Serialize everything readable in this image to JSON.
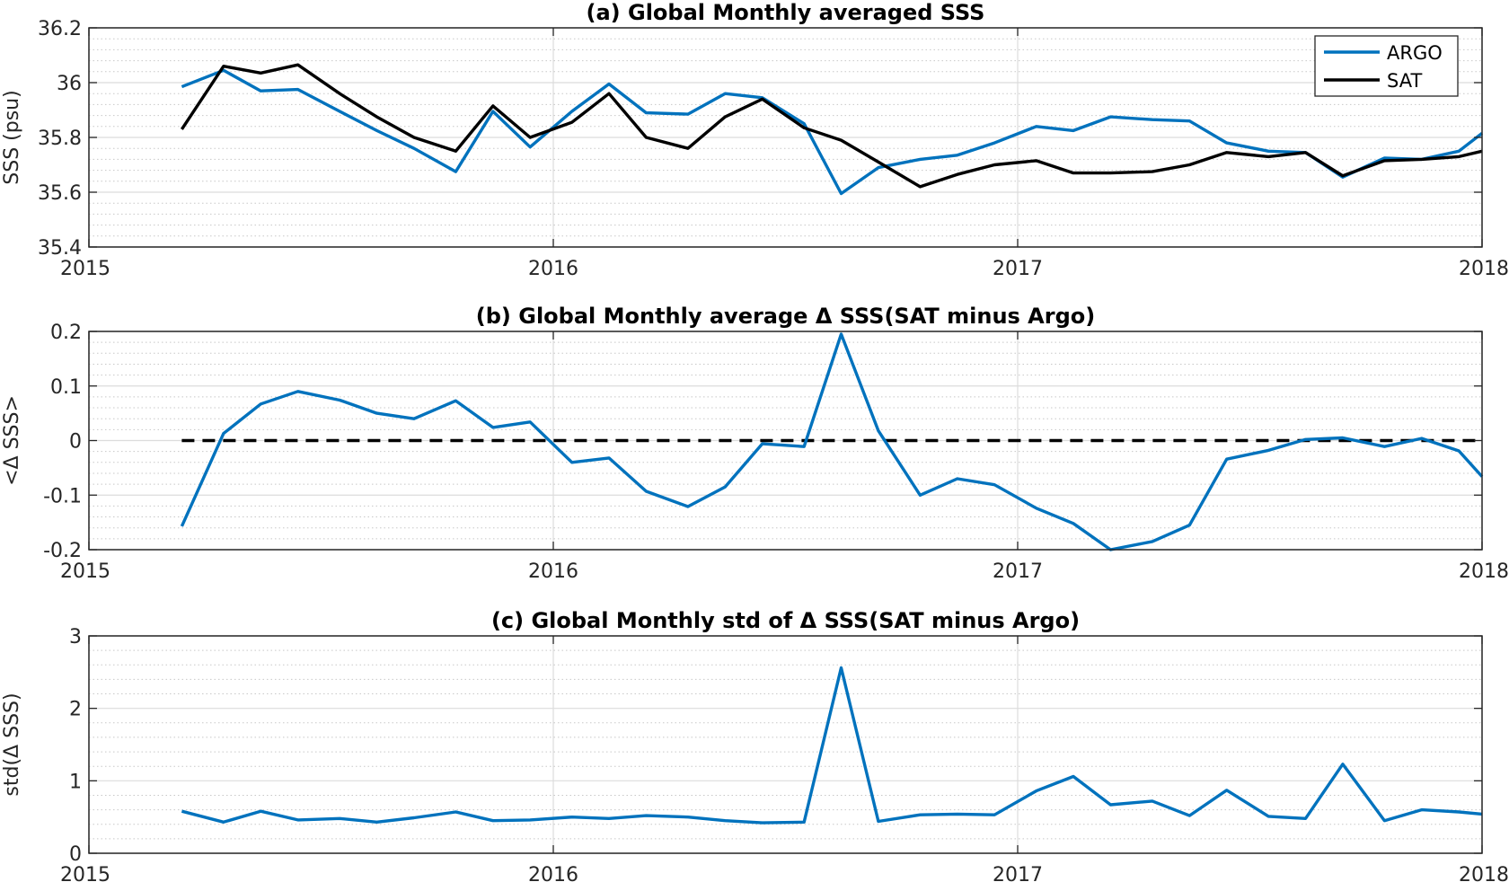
{
  "colors": {
    "argo": "#0072BD",
    "sat": "#000000",
    "zero_line": "#000000"
  },
  "chart_data": [
    {
      "type": "line",
      "title": "(a) Global Monthly averaged SSS",
      "xlabel": "",
      "ylabel": "SSS (psu)",
      "xlim": [
        2015,
        2018
      ],
      "ylim": [
        35.4,
        36.2
      ],
      "xticks": [
        2015,
        2016,
        2017,
        2018
      ],
      "xtick_labels": [
        "2015",
        "2016",
        "2017",
        "2018"
      ],
      "yticks": [
        35.4,
        35.6,
        35.8,
        36,
        36.2
      ],
      "ytick_labels": [
        "35.4",
        "35.6",
        "35.8",
        "36",
        "36.2"
      ],
      "y_minor_step": 0.04,
      "grid": true,
      "legend": "top-right",
      "x": [
        2015.2,
        2015.29,
        2015.37,
        2015.45,
        2015.54,
        2015.62,
        2015.7,
        2015.79,
        2015.87,
        2015.95,
        2016.04,
        2016.12,
        2016.2,
        2016.29,
        2016.37,
        2016.45,
        2016.54,
        2016.62,
        2016.7,
        2016.79,
        2016.87,
        2016.95,
        2017.04,
        2017.12,
        2017.2,
        2017.29,
        2017.37,
        2017.45,
        2017.54,
        2017.62,
        2017.7,
        2017.79,
        2017.87,
        2017.95,
        2018.0
      ],
      "series": [
        {
          "name": "ARGO",
          "values": [
            35.985,
            36.045,
            35.97,
            35.975,
            35.895,
            35.825,
            35.76,
            35.675,
            35.895,
            35.765,
            35.895,
            35.995,
            35.89,
            35.885,
            35.96,
            35.945,
            35.85,
            35.595,
            35.69,
            35.72,
            35.735,
            35.78,
            35.84,
            35.825,
            35.875,
            35.865,
            35.86,
            35.78,
            35.75,
            35.745,
            35.655,
            35.725,
            35.72,
            35.75,
            35.815
          ]
        },
        {
          "name": "SAT",
          "values": [
            35.83,
            36.06,
            36.035,
            36.065,
            35.96,
            35.875,
            35.8,
            35.75,
            35.915,
            35.8,
            35.855,
            35.96,
            35.8,
            35.76,
            35.875,
            35.94,
            35.835,
            35.79,
            35.71,
            35.62,
            35.665,
            35.7,
            35.715,
            35.67,
            35.67,
            35.675,
            35.7,
            35.745,
            35.73,
            35.745,
            35.66,
            35.715,
            35.72,
            35.73,
            35.75
          ]
        }
      ]
    },
    {
      "type": "line",
      "title": "(b) Global Monthly average Δ SSS(SAT minus Argo)",
      "xlabel": "",
      "ylabel": "<Δ SSS>",
      "xlim": [
        2015,
        2018
      ],
      "ylim": [
        -0.2,
        0.2
      ],
      "xticks": [
        2015,
        2016,
        2017,
        2018
      ],
      "xtick_labels": [
        "2015",
        "2016",
        "2017",
        "2018"
      ],
      "yticks": [
        -0.2,
        -0.1,
        0,
        0.1,
        0.2
      ],
      "ytick_labels": [
        "-0.2",
        "-0.1",
        "0",
        "0.1",
        "0.2"
      ],
      "y_minor_step": 0.02,
      "grid": true,
      "zero_line": 0,
      "x": [
        2015.2,
        2015.29,
        2015.37,
        2015.45,
        2015.54,
        2015.62,
        2015.7,
        2015.79,
        2015.87,
        2015.95,
        2016.04,
        2016.12,
        2016.2,
        2016.29,
        2016.37,
        2016.45,
        2016.54,
        2016.62,
        2016.7,
        2016.79,
        2016.87,
        2016.95,
        2017.04,
        2017.12,
        2017.2,
        2017.29,
        2017.37,
        2017.45,
        2017.54,
        2017.62,
        2017.7,
        2017.79,
        2017.87,
        2017.95,
        2018.0
      ],
      "series": [
        {
          "name": "",
          "values": [
            -0.157,
            0.013,
            0.067,
            0.09,
            0.074,
            0.05,
            0.04,
            0.073,
            0.024,
            0.034,
            -0.04,
            -0.032,
            -0.093,
            -0.121,
            -0.085,
            -0.006,
            -0.011,
            0.195,
            0.018,
            -0.1,
            -0.07,
            -0.081,
            -0.124,
            -0.152,
            -0.2,
            -0.185,
            -0.155,
            -0.034,
            -0.018,
            0.002,
            0.005,
            -0.011,
            0.004,
            -0.019,
            -0.066
          ]
        }
      ]
    },
    {
      "type": "line",
      "title": "(c) Global Monthly std of Δ SSS(SAT minus Argo)",
      "xlabel": "",
      "ylabel": "std(Δ SSS)",
      "xlim": [
        2015,
        2018
      ],
      "ylim": [
        0,
        3
      ],
      "xticks": [
        2015,
        2016,
        2017,
        2018
      ],
      "xtick_labels": [
        "2015",
        "2016",
        "2017",
        "2018"
      ],
      "yticks": [
        0,
        1,
        2,
        3
      ],
      "ytick_labels": [
        "0",
        "1",
        "2",
        "3"
      ],
      "y_minor_step": 0.2,
      "grid": true,
      "x": [
        2015.2,
        2015.29,
        2015.37,
        2015.45,
        2015.54,
        2015.62,
        2015.7,
        2015.79,
        2015.87,
        2015.95,
        2016.04,
        2016.12,
        2016.2,
        2016.29,
        2016.37,
        2016.45,
        2016.54,
        2016.62,
        2016.7,
        2016.79,
        2016.87,
        2016.95,
        2017.04,
        2017.12,
        2017.2,
        2017.29,
        2017.37,
        2017.45,
        2017.54,
        2017.62,
        2017.7,
        2017.79,
        2017.87,
        2017.95,
        2018.0
      ],
      "series": [
        {
          "name": "",
          "values": [
            0.58,
            0.43,
            0.58,
            0.46,
            0.48,
            0.43,
            0.49,
            0.57,
            0.45,
            0.46,
            0.5,
            0.48,
            0.52,
            0.5,
            0.45,
            0.42,
            0.43,
            2.56,
            0.44,
            0.53,
            0.54,
            0.53,
            0.86,
            1.06,
            0.67,
            0.72,
            0.52,
            0.87,
            0.51,
            0.48,
            1.23,
            0.45,
            0.6,
            0.57,
            0.54
          ]
        }
      ]
    }
  ]
}
